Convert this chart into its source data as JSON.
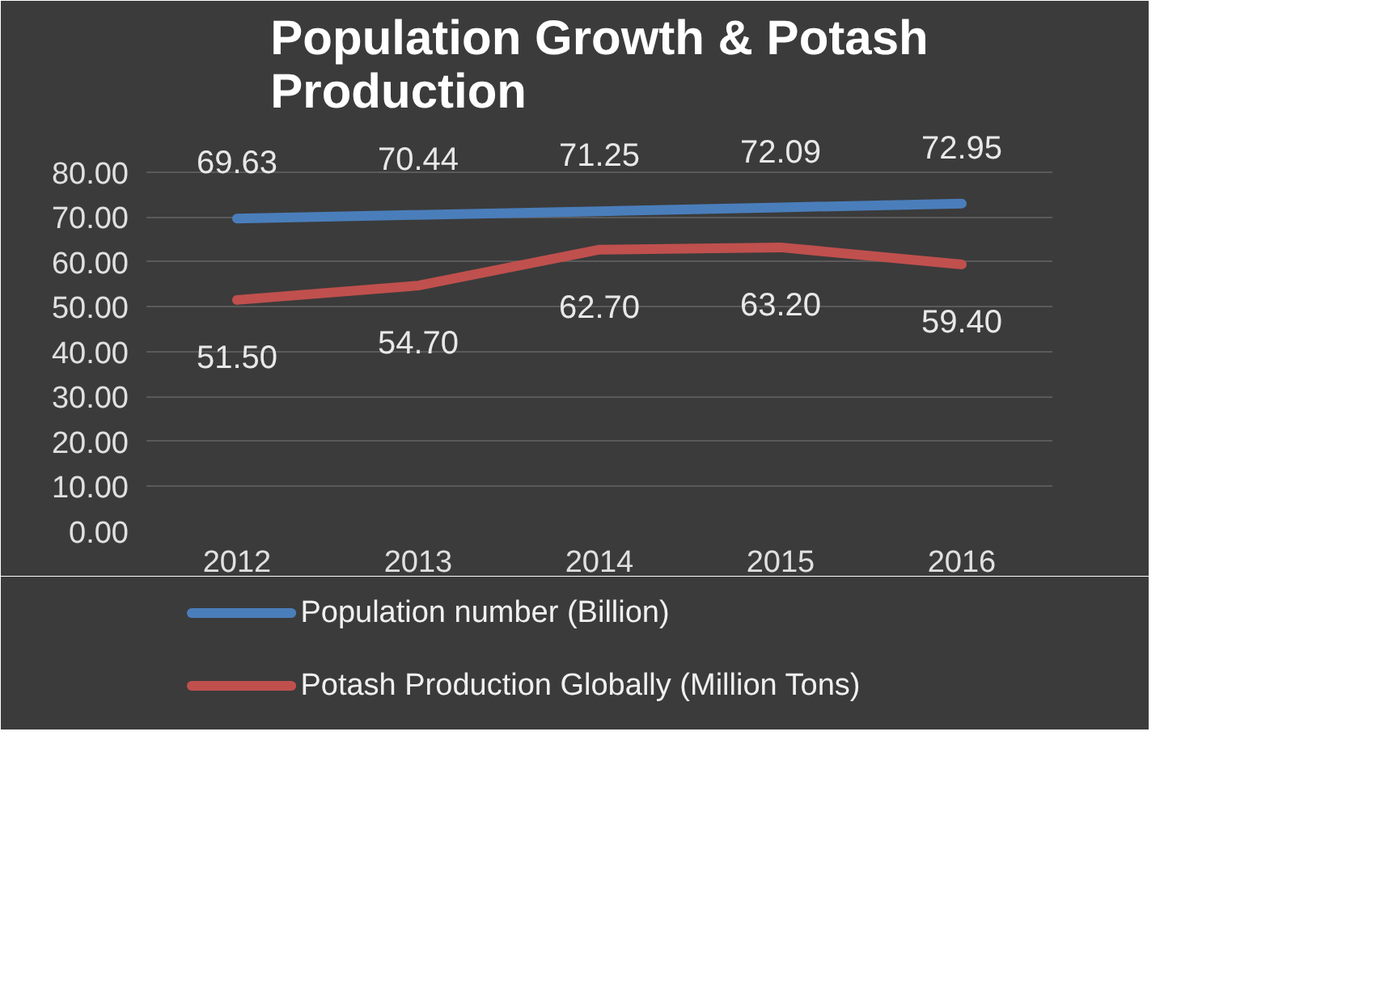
{
  "chart_data": {
    "type": "line",
    "title": "Population Growth & Potash Production",
    "categories": [
      "2012",
      "2013",
      "2014",
      "2015",
      "2016"
    ],
    "series": [
      {
        "name": "Population number (Billion)",
        "color": "#4a7ebb",
        "values": [
          69.63,
          70.44,
          71.25,
          72.09,
          72.95
        ],
        "value_labels": [
          "69.63",
          "70.44",
          "71.25",
          "72.09",
          "72.95"
        ]
      },
      {
        "name": "Potash Production Globally (Million Tons)",
        "color": "#c0504d",
        "values": [
          51.5,
          54.7,
          62.7,
          63.2,
          59.4
        ],
        "value_labels": [
          "51.50",
          "54.70",
          "62.70",
          "63.20",
          "59.40"
        ]
      }
    ],
    "ylim": [
      0,
      90
    ],
    "yticks": [
      {
        "value": 0,
        "label": "0.00"
      },
      {
        "value": 10,
        "label": "10.00"
      },
      {
        "value": 20,
        "label": "20.00"
      },
      {
        "value": 30,
        "label": "30.00"
      },
      {
        "value": 40,
        "label": "40.00"
      },
      {
        "value": 50,
        "label": "50.00"
      },
      {
        "value": 60,
        "label": "60.00"
      },
      {
        "value": 70,
        "label": "70.00"
      },
      {
        "value": 80,
        "label": "80.00"
      }
    ],
    "grid": "y",
    "legend": "bottom",
    "marker": "none",
    "line_style": "solid"
  }
}
